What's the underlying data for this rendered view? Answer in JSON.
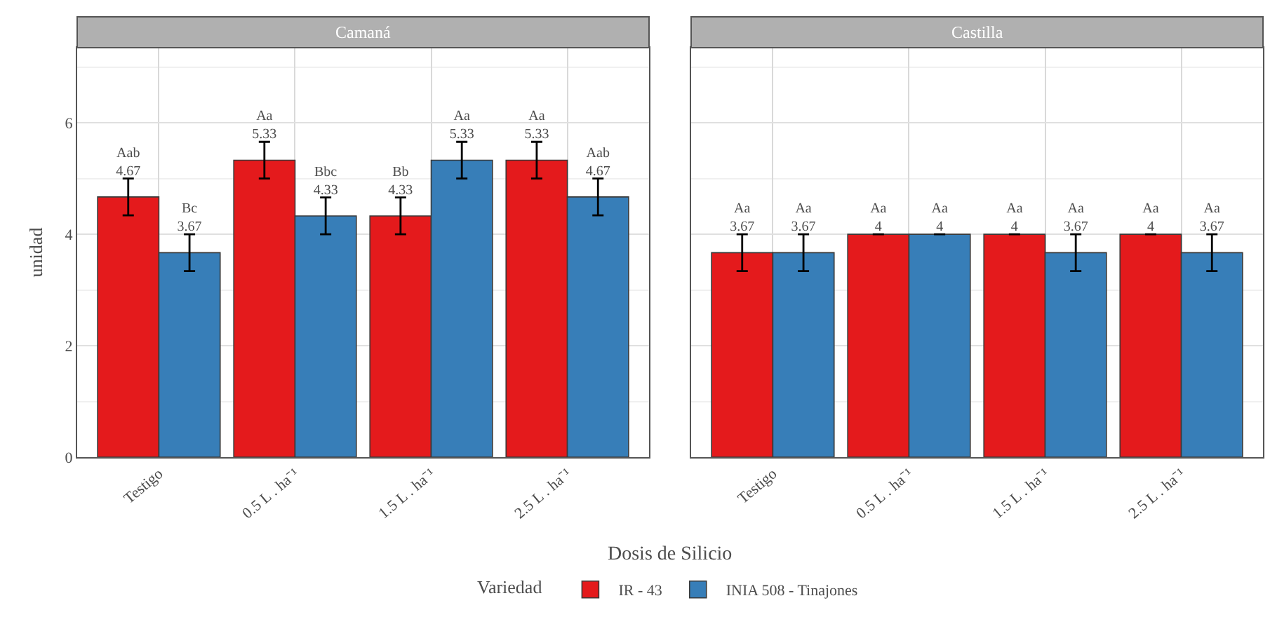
{
  "chart_data": [
    {
      "type": "bar",
      "title": "Camaná",
      "categories": [
        "Testigo",
        "0.5 L . ha⁻¹",
        "1.5 L . ha⁻¹",
        "2.5 L . ha⁻¹"
      ],
      "series": [
        {
          "name": "IR - 43",
          "color": "#e41a1c",
          "values": [
            4.67,
            5.33,
            4.33,
            5.33
          ],
          "errors": [
            0.33,
            0.33,
            0.33,
            0.33
          ],
          "value_labels": [
            "Aab\n4.67",
            "Aa\n5.33",
            "Bb\n4.33",
            "Aa\n5.33"
          ]
        },
        {
          "name": "INIA 508 - Tinajones",
          "color": "#377eb8",
          "values": [
            3.67,
            4.33,
            5.33,
            4.67
          ],
          "errors": [
            0.33,
            0.33,
            0.33,
            0.33
          ],
          "value_labels": [
            "Bc\n3.67",
            "Bbc\n4.33",
            "Aa\n5.33",
            "Aab\n4.67"
          ]
        }
      ],
      "xlabel": "Dosis de Silicio",
      "ylabel": "unidad",
      "legend_title": "Variedad",
      "legend": "bottom",
      "ylim": [
        0,
        7.35
      ],
      "yticks": [
        0,
        2,
        4,
        6
      ],
      "grid": true
    },
    {
      "type": "bar",
      "title": "Castilla",
      "categories": [
        "Testigo",
        "0.5 L . ha⁻¹",
        "1.5 L . ha⁻¹",
        "2.5 L . ha⁻¹"
      ],
      "series": [
        {
          "color": "#e41a1c",
          "values": [
            3.67,
            4,
            4,
            4
          ],
          "errors": [
            0.33,
            0,
            0,
            0
          ],
          "value_labels": [
            "Aa\n3.67",
            "Aa\n4",
            "Aa\n4",
            "Aa\n4"
          ]
        },
        {
          "color": "#377eb8",
          "values": [
            3.67,
            4,
            3.67,
            3.67
          ],
          "errors": [
            0.33,
            0,
            0.33,
            0.33
          ],
          "value_labels": [
            "Aa\n3.67",
            "Aa\n4",
            "Aa\n3.67",
            "Aa\n3.67"
          ]
        }
      ],
      "ylim": [
        0,
        7.35
      ],
      "yticks": [
        0,
        2,
        4,
        6
      ],
      "grid": true,
      "tick_labels": "x"
    }
  ]
}
